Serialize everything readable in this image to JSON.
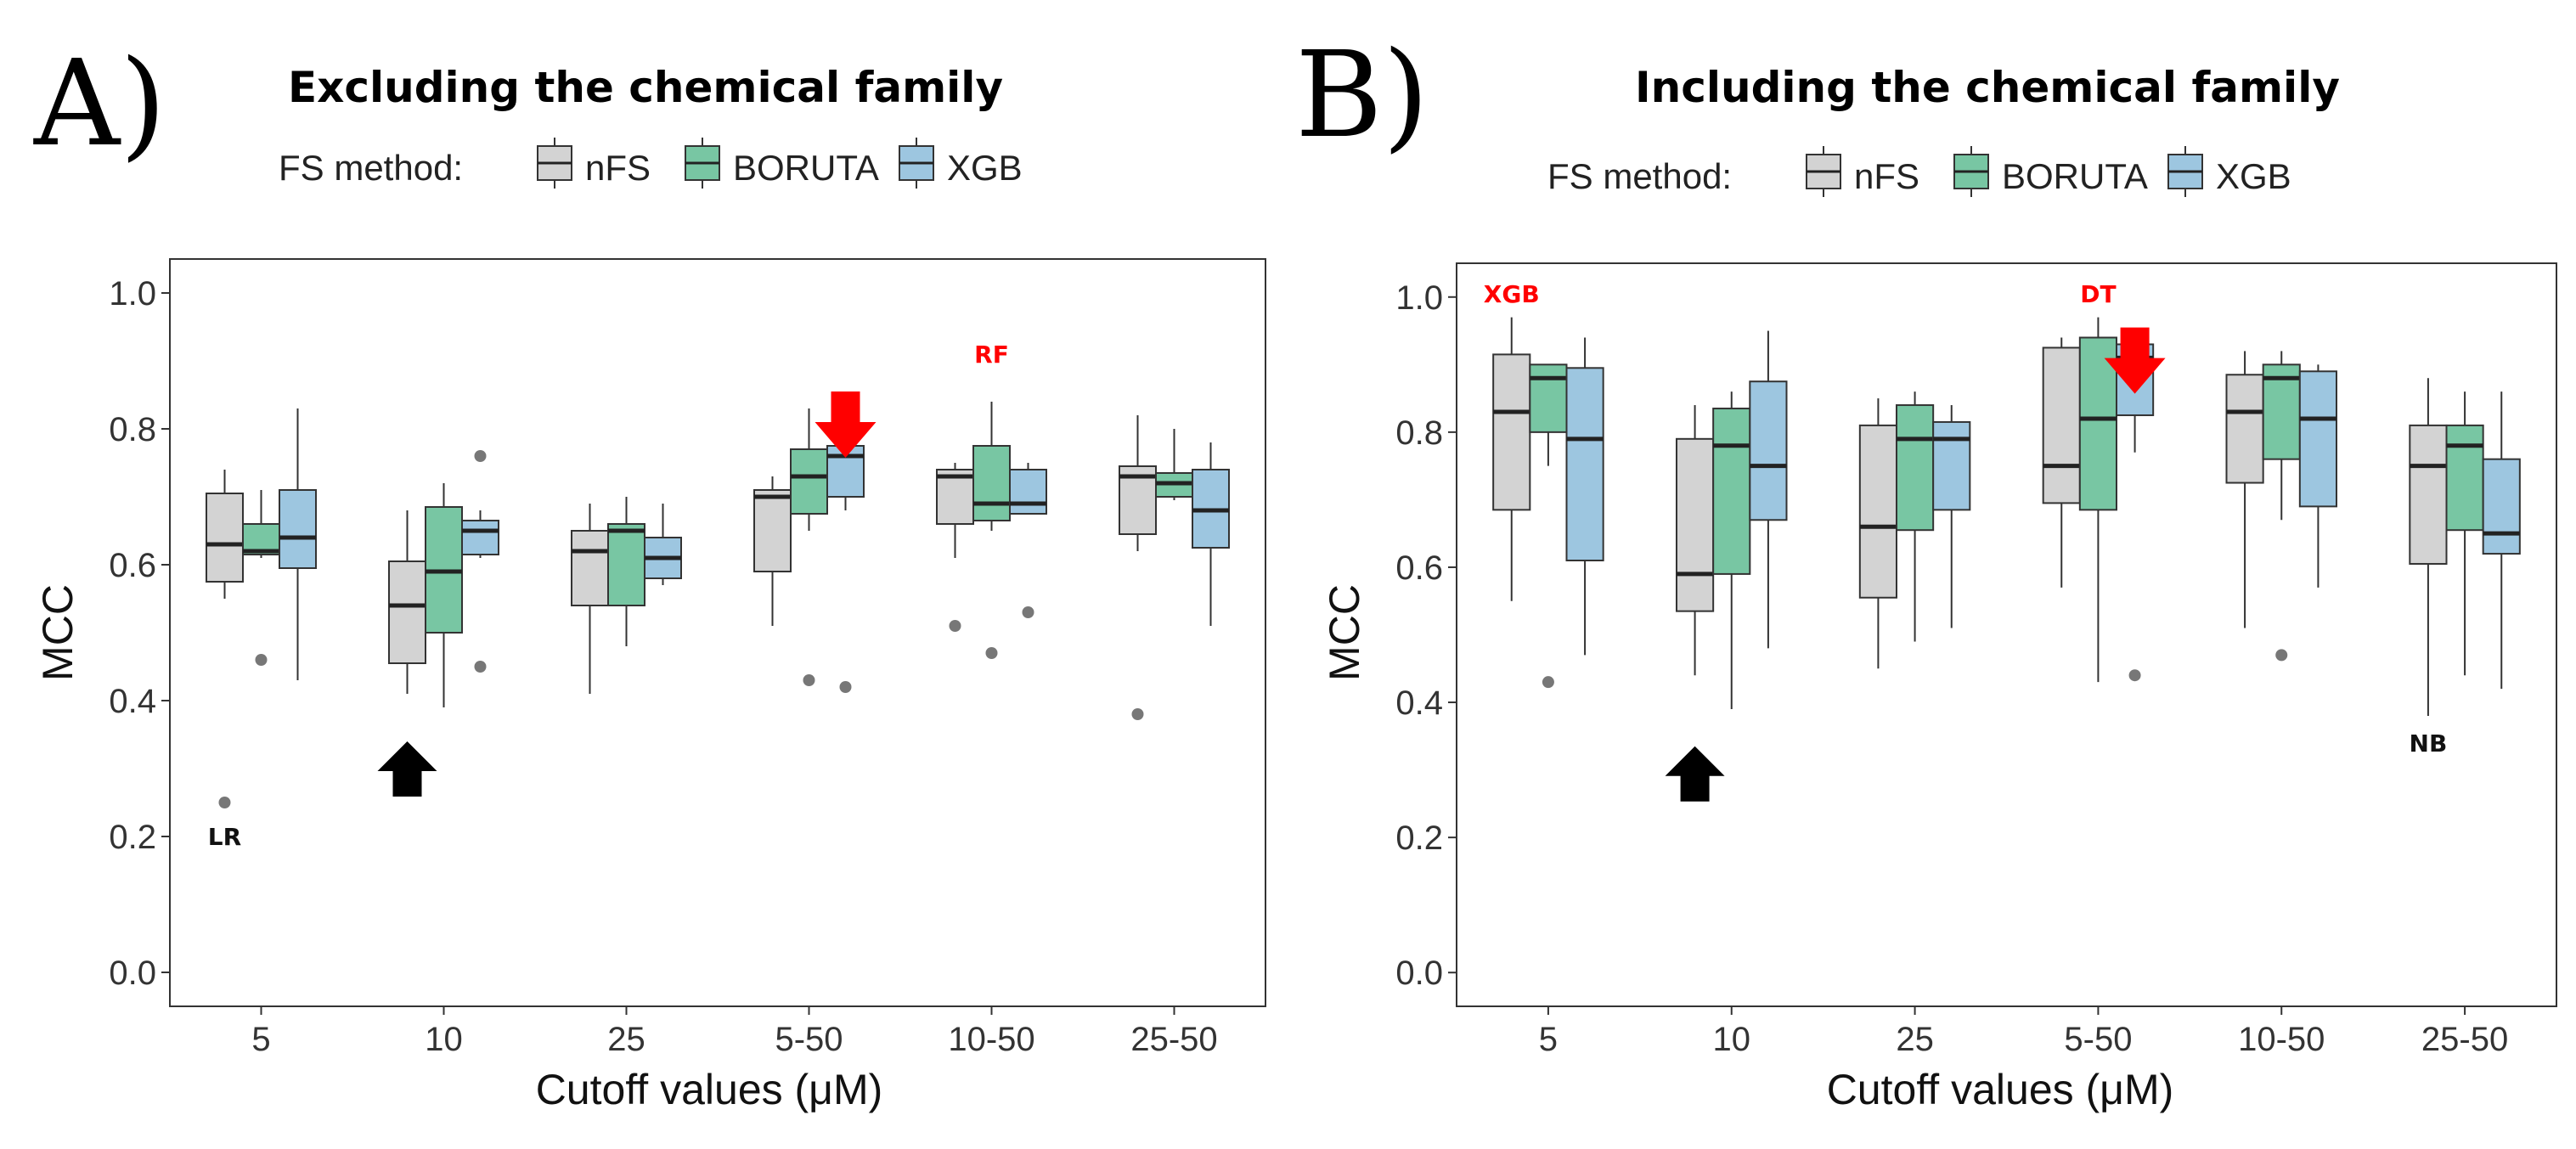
{
  "figure": {
    "legend_title": "FS method:",
    "colors": {
      "nFS": "#d3d3d3",
      "BORUTA": "#78c6a3",
      "XGB": "#9dc6e0",
      "outline": "#333333",
      "red_arrow": "#ff0000",
      "black_arrow": "#000000"
    }
  },
  "chart_data": [
    {
      "type": "boxplot",
      "panel_label": "A)",
      "title": "Excluding the chemical family",
      "xlabel": "Cutoff values (μM)",
      "ylabel": "MCC",
      "ylim": [
        -0.05,
        1.05
      ],
      "yticks": [
        "0.0",
        "0.2",
        "0.4",
        "0.6",
        "0.8",
        "1.0"
      ],
      "categories": [
        "5",
        "10",
        "25",
        "5-50",
        "10-50",
        "25-50"
      ],
      "legend": [
        "nFS",
        "BORUTA",
        "XGB"
      ],
      "series": [
        {
          "name": "nFS",
          "boxes": [
            {
              "lo": 0.55,
              "q1": 0.575,
              "med": 0.63,
              "q3": 0.705,
              "hi": 0.74,
              "outliers": [
                0.25
              ]
            },
            {
              "lo": 0.41,
              "q1": 0.455,
              "med": 0.54,
              "q3": 0.605,
              "hi": 0.68,
              "outliers": []
            },
            {
              "lo": 0.41,
              "q1": 0.54,
              "med": 0.62,
              "q3": 0.65,
              "hi": 0.69,
              "outliers": []
            },
            {
              "lo": 0.51,
              "q1": 0.59,
              "med": 0.7,
              "q3": 0.71,
              "hi": 0.73,
              "outliers": []
            },
            {
              "lo": 0.61,
              "q1": 0.66,
              "med": 0.73,
              "q3": 0.74,
              "hi": 0.75,
              "outliers": [
                0.51
              ]
            },
            {
              "lo": 0.62,
              "q1": 0.645,
              "med": 0.73,
              "q3": 0.745,
              "hi": 0.82,
              "outliers": [
                0.38
              ]
            }
          ]
        },
        {
          "name": "BORUTA",
          "boxes": [
            {
              "lo": 0.61,
              "q1": 0.615,
              "med": 0.62,
              "q3": 0.66,
              "hi": 0.71,
              "outliers": [
                0.46
              ]
            },
            {
              "lo": 0.39,
              "q1": 0.5,
              "med": 0.59,
              "q3": 0.685,
              "hi": 0.72,
              "outliers": []
            },
            {
              "lo": 0.48,
              "q1": 0.54,
              "med": 0.65,
              "q3": 0.66,
              "hi": 0.7,
              "outliers": []
            },
            {
              "lo": 0.65,
              "q1": 0.675,
              "med": 0.73,
              "q3": 0.77,
              "hi": 0.83,
              "outliers": [
                0.43
              ]
            },
            {
              "lo": 0.65,
              "q1": 0.665,
              "med": 0.69,
              "q3": 0.775,
              "hi": 0.84,
              "outliers": [
                0.47
              ]
            },
            {
              "lo": 0.695,
              "q1": 0.7,
              "med": 0.72,
              "q3": 0.735,
              "hi": 0.8,
              "outliers": []
            }
          ]
        },
        {
          "name": "XGB",
          "boxes": [
            {
              "lo": 0.43,
              "q1": 0.595,
              "med": 0.64,
              "q3": 0.71,
              "hi": 0.83,
              "outliers": []
            },
            {
              "lo": 0.61,
              "q1": 0.615,
              "med": 0.65,
              "q3": 0.665,
              "hi": 0.68,
              "outliers": [
                0.76,
                0.45
              ]
            },
            {
              "lo": 0.57,
              "q1": 0.58,
              "med": 0.61,
              "q3": 0.64,
              "hi": 0.69,
              "outliers": []
            },
            {
              "lo": 0.68,
              "q1": 0.7,
              "med": 0.76,
              "q3": 0.775,
              "hi": 0.79,
              "outliers": [
                0.42
              ]
            },
            {
              "lo": 0.675,
              "q1": 0.675,
              "med": 0.69,
              "q3": 0.74,
              "hi": 0.75,
              "outliers": [
                0.53
              ]
            },
            {
              "lo": 0.51,
              "q1": 0.625,
              "med": 0.68,
              "q3": 0.74,
              "hi": 0.78,
              "outliers": []
            }
          ]
        }
      ],
      "annotations": [
        {
          "text": "LR",
          "color": "black",
          "category": "5",
          "series": "nFS",
          "y": 0.2
        },
        {
          "text": "RF",
          "color": "red",
          "category": "10-50",
          "series": "BORUTA",
          "y": 0.91
        }
      ],
      "arrows": [
        {
          "color": "black",
          "direction": "up",
          "category": "10",
          "series": "nFS",
          "y": 0.34
        },
        {
          "color": "red",
          "direction": "down",
          "category": "5-50",
          "series": "XGB",
          "y": 0.855
        }
      ]
    },
    {
      "type": "boxplot",
      "panel_label": "B)",
      "title": "Including the chemical family",
      "xlabel": "Cutoff values (μM)",
      "ylabel": "MCC",
      "ylim": [
        -0.05,
        1.05
      ],
      "yticks": [
        "0.0",
        "0.2",
        "0.4",
        "0.6",
        "0.8",
        "1.0"
      ],
      "categories": [
        "5",
        "10",
        "25",
        "5-50",
        "10-50",
        "25-50"
      ],
      "legend": [
        "nFS",
        "BORUTA",
        "XGB"
      ],
      "series": [
        {
          "name": "nFS",
          "boxes": [
            {
              "lo": 0.55,
              "q1": 0.685,
              "med": 0.83,
              "q3": 0.915,
              "hi": 0.97,
              "outliers": []
            },
            {
              "lo": 0.44,
              "q1": 0.535,
              "med": 0.59,
              "q3": 0.79,
              "hi": 0.84,
              "outliers": []
            },
            {
              "lo": 0.45,
              "q1": 0.555,
              "med": 0.66,
              "q3": 0.81,
              "hi": 0.85,
              "outliers": []
            },
            {
              "lo": 0.57,
              "q1": 0.695,
              "med": 0.75,
              "q3": 0.925,
              "hi": 0.94,
              "outliers": []
            },
            {
              "lo": 0.51,
              "q1": 0.725,
              "med": 0.83,
              "q3": 0.885,
              "hi": 0.92,
              "outliers": []
            },
            {
              "lo": 0.38,
              "q1": 0.605,
              "med": 0.75,
              "q3": 0.81,
              "hi": 0.88,
              "outliers": []
            }
          ]
        },
        {
          "name": "BORUTA",
          "boxes": [
            {
              "lo": 0.75,
              "q1": 0.8,
              "med": 0.88,
              "q3": 0.9,
              "hi": 0.9,
              "outliers": [
                0.43
              ]
            },
            {
              "lo": 0.39,
              "q1": 0.59,
              "med": 0.78,
              "q3": 0.835,
              "hi": 0.86,
              "outliers": []
            },
            {
              "lo": 0.49,
              "q1": 0.655,
              "med": 0.79,
              "q3": 0.84,
              "hi": 0.86,
              "outliers": []
            },
            {
              "lo": 0.43,
              "q1": 0.685,
              "med": 0.82,
              "q3": 0.94,
              "hi": 0.97,
              "outliers": []
            },
            {
              "lo": 0.67,
              "q1": 0.76,
              "med": 0.88,
              "q3": 0.9,
              "hi": 0.92,
              "outliers": [
                0.47
              ]
            },
            {
              "lo": 0.44,
              "q1": 0.655,
              "med": 0.78,
              "q3": 0.81,
              "hi": 0.86,
              "outliers": []
            }
          ]
        },
        {
          "name": "XGB",
          "boxes": [
            {
              "lo": 0.47,
              "q1": 0.61,
              "med": 0.79,
              "q3": 0.895,
              "hi": 0.94,
              "outliers": []
            },
            {
              "lo": 0.48,
              "q1": 0.67,
              "med": 0.75,
              "q3": 0.875,
              "hi": 0.95,
              "outliers": []
            },
            {
              "lo": 0.51,
              "q1": 0.685,
              "med": 0.79,
              "q3": 0.815,
              "hi": 0.84,
              "outliers": []
            },
            {
              "lo": 0.77,
              "q1": 0.825,
              "med": 0.91,
              "q3": 0.93,
              "hi": 0.95,
              "outliers": [
                0.44
              ]
            },
            {
              "lo": 0.57,
              "q1": 0.69,
              "med": 0.82,
              "q3": 0.89,
              "hi": 0.9,
              "outliers": []
            },
            {
              "lo": 0.42,
              "q1": 0.62,
              "med": 0.65,
              "q3": 0.76,
              "hi": 0.86,
              "outliers": []
            }
          ]
        }
      ],
      "annotations": [
        {
          "text": "XGB",
          "color": "red",
          "category": "5",
          "series": "nFS",
          "y": 1.005
        },
        {
          "text": "DT",
          "color": "red",
          "category": "5-50",
          "series": "BORUTA",
          "y": 1.005
        },
        {
          "text": "NB",
          "color": "black",
          "category": "25-50",
          "series": "nFS",
          "y": 0.34
        }
      ],
      "arrows": [
        {
          "color": "black",
          "direction": "up",
          "category": "10",
          "series": "nFS",
          "y": 0.335
        },
        {
          "color": "red",
          "direction": "down",
          "category": "5-50",
          "series": "XGB",
          "y": 0.955
        }
      ]
    }
  ]
}
